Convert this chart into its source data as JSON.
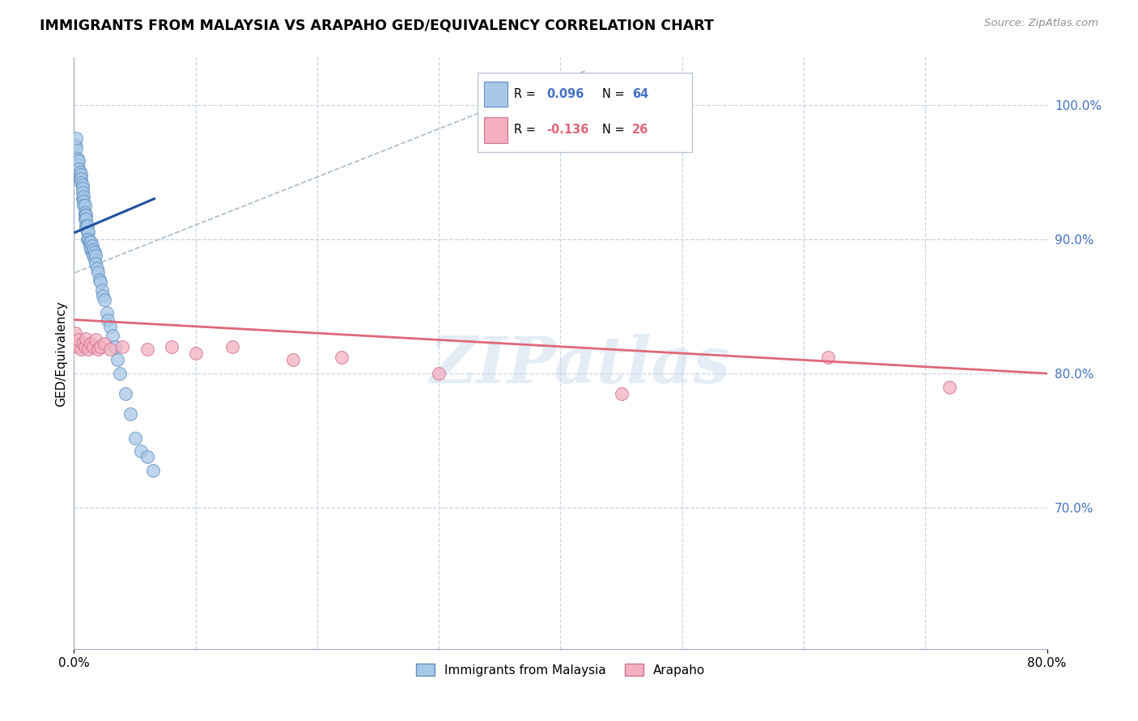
{
  "title": "IMMIGRANTS FROM MALAYSIA VS ARAPAHO GED/EQUIVALENCY CORRELATION CHART",
  "source": "Source: ZipAtlas.com",
  "ylabel": "GED/Equivalency",
  "ytick_labels": [
    "100.0%",
    "90.0%",
    "80.0%",
    "70.0%"
  ],
  "ytick_values": [
    1.0,
    0.9,
    0.8,
    0.7
  ],
  "xlim": [
    0.0,
    0.8
  ],
  "ylim": [
    0.595,
    1.035
  ],
  "blue_color": "#a8c8e8",
  "pink_color": "#f4b0c0",
  "blue_edge_color": "#6090c0",
  "pink_edge_color": "#d07090",
  "blue_line_color": "#2050a0",
  "pink_line_color": "#e06878",
  "dash_line_color": "#aabccc",
  "watermark": "ZIPatlas",
  "background_color": "#ffffff",
  "grid_color": "#c8d4e4",
  "right_axis_color": "#4472c4",
  "blue_scatter_x": [
    0.0008,
    0.0015,
    0.002,
    0.003,
    0.003,
    0.004,
    0.004,
    0.005,
    0.005,
    0.006,
    0.006,
    0.006,
    0.007,
    0.007,
    0.007,
    0.007,
    0.008,
    0.008,
    0.008,
    0.009,
    0.009,
    0.009,
    0.009,
    0.01,
    0.01,
    0.01,
    0.01,
    0.011,
    0.011,
    0.011,
    0.012,
    0.012,
    0.013,
    0.013,
    0.014,
    0.014,
    0.015,
    0.015,
    0.016,
    0.016,
    0.017,
    0.017,
    0.018,
    0.018,
    0.019,
    0.02,
    0.021,
    0.022,
    0.023,
    0.024,
    0.025,
    0.027,
    0.028,
    0.03,
    0.032,
    0.034,
    0.036,
    0.038,
    0.042,
    0.046,
    0.05,
    0.055,
    0.06,
    0.065
  ],
  "blue_scatter_y": [
    0.97,
    0.968,
    0.975,
    0.96,
    0.955,
    0.958,
    0.952,
    0.95,
    0.945,
    0.948,
    0.945,
    0.942,
    0.94,
    0.938,
    0.935,
    0.93,
    0.932,
    0.928,
    0.925,
    0.925,
    0.92,
    0.918,
    0.915,
    0.918,
    0.915,
    0.91,
    0.908,
    0.91,
    0.905,
    0.9,
    0.905,
    0.9,
    0.898,
    0.895,
    0.898,
    0.892,
    0.895,
    0.89,
    0.892,
    0.888,
    0.89,
    0.885,
    0.888,
    0.882,
    0.878,
    0.875,
    0.87,
    0.868,
    0.862,
    0.858,
    0.855,
    0.845,
    0.84,
    0.835,
    0.828,
    0.82,
    0.81,
    0.8,
    0.785,
    0.77,
    0.752,
    0.742,
    0.738,
    0.728
  ],
  "pink_scatter_x": [
    0.001,
    0.003,
    0.004,
    0.006,
    0.007,
    0.009,
    0.01,
    0.012,
    0.014,
    0.016,
    0.018,
    0.02,
    0.022,
    0.025,
    0.03,
    0.04,
    0.06,
    0.08,
    0.1,
    0.13,
    0.18,
    0.22,
    0.3,
    0.45,
    0.62,
    0.72
  ],
  "pink_scatter_y": [
    0.83,
    0.82,
    0.825,
    0.818,
    0.822,
    0.82,
    0.826,
    0.818,
    0.822,
    0.82,
    0.825,
    0.818,
    0.82,
    0.822,
    0.818,
    0.82,
    0.818,
    0.82,
    0.815,
    0.82,
    0.81,
    0.812,
    0.8,
    0.785,
    0.812,
    0.79
  ],
  "blue_line_x": [
    0.001,
    0.066
  ],
  "blue_line_y": [
    0.905,
    0.93
  ],
  "pink_line_x": [
    0.0,
    0.8
  ],
  "pink_line_y": [
    0.84,
    0.8
  ],
  "dash_line_x": [
    0.001,
    0.42
  ],
  "dash_line_y": [
    0.875,
    1.025
  ]
}
